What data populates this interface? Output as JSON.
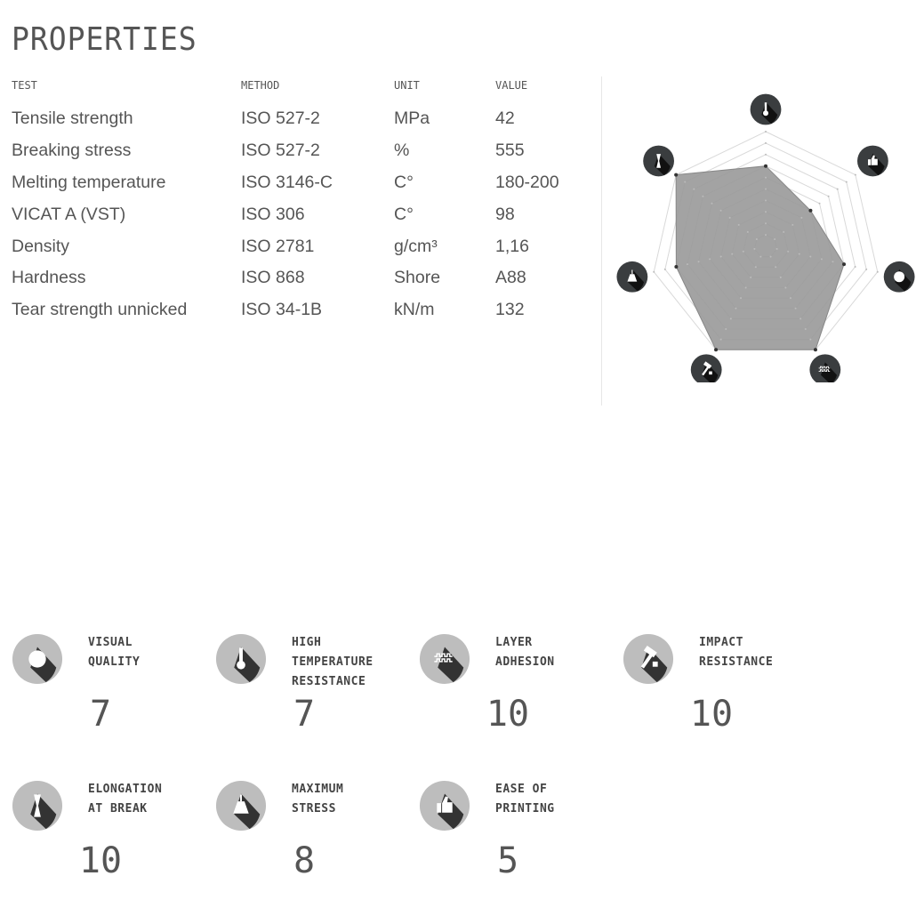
{
  "title": "PROPERTIES",
  "table": {
    "headers": [
      "TEST",
      "METHOD",
      "UNIT",
      "VALUE"
    ],
    "rows": [
      [
        "Tensile strength",
        "ISO 527-2",
        "MPa",
        "42"
      ],
      [
        "Breaking stress",
        "ISO 527-2",
        "%",
        "555"
      ],
      [
        "Melting temperature",
        "ISO 3146-C",
        "C°",
        "180-200"
      ],
      [
        "VICAT A (VST)",
        "ISO 306",
        "C°",
        "98"
      ],
      [
        "Density",
        "ISO 2781",
        "g/cm³",
        "1,16"
      ],
      [
        "Hardness",
        "ISO 868",
        "Shore",
        "A88"
      ],
      [
        "Tear strength unnicked",
        "ISO 34-1B",
        "kN/m",
        "132"
      ]
    ]
  },
  "chart_data": {
    "type": "radar",
    "range": [
      0,
      10
    ],
    "levels": 10,
    "axes": [
      {
        "icon": "thermometer-icon",
        "value": 7
      },
      {
        "icon": "thumbs-up-icon",
        "value": 5
      },
      {
        "icon": "gear-circle-icon",
        "value": 7
      },
      {
        "icon": "layers-icon",
        "value": 10
      },
      {
        "icon": "hammer-icon",
        "value": 10
      },
      {
        "icon": "weight-icon",
        "value": 8
      },
      {
        "icon": "elongation-icon",
        "value": 10
      }
    ],
    "colors": {
      "fill": "#999999",
      "grid": "#d9d9d9",
      "icon_bg": "#3a3d3f"
    }
  },
  "ratings": [
    {
      "label": "VISUAL\nQUALITY",
      "value": "7",
      "icon": "gear-circle-icon"
    },
    {
      "label": "HIGH\nTEMPERATURE\nRESISTANCE",
      "value": "7",
      "icon": "thermometer-icon"
    },
    {
      "label": "LAYER\nADHESION",
      "value": "10",
      "icon": "layers-icon"
    },
    {
      "label": "IMPACT\nRESISTANCE",
      "value": "10",
      "icon": "hammer-icon"
    },
    {
      "label": "ELONGATION\nAT BREAK",
      "value": "10",
      "icon": "elongation-icon"
    },
    {
      "label": "MAXIMUM\nSTRESS",
      "value": "8",
      "icon": "weight-icon"
    },
    {
      "label": "EASE OF\nPRINTING",
      "value": "5",
      "icon": "thumbs-up-icon"
    }
  ]
}
